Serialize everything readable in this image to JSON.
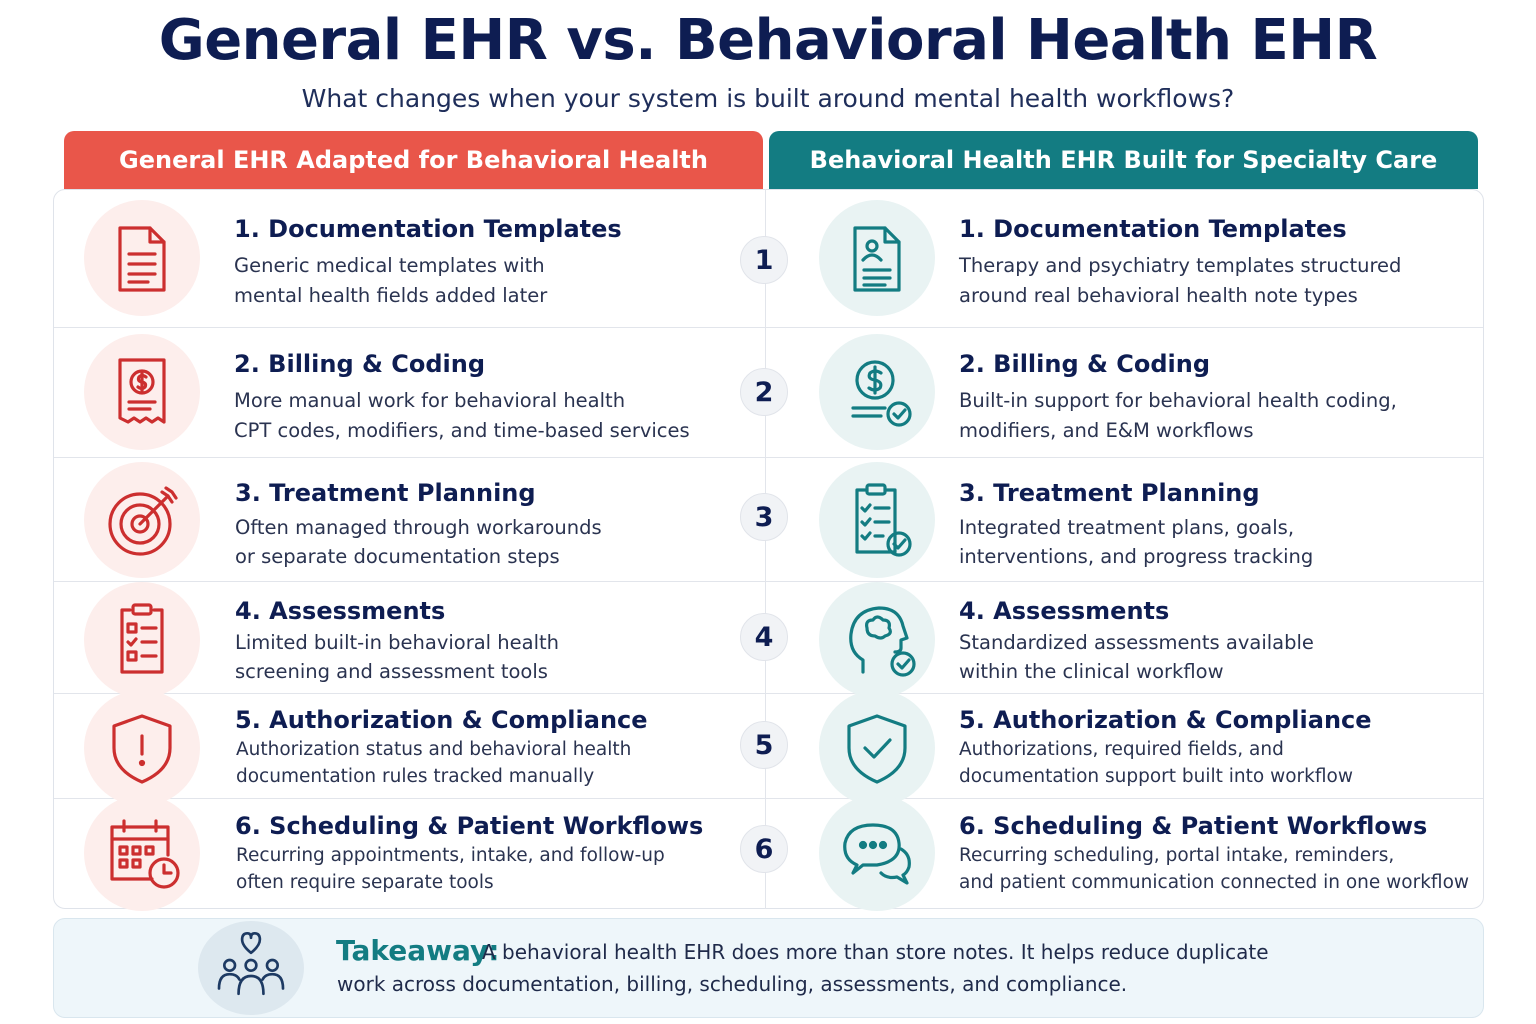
{
  "title": "General EHR vs. Behavioral Health EHR",
  "subtitle": "What changes when your system is built around mental health workflows?",
  "columns": {
    "left": "General EHR Adapted for Behavioral Health",
    "right": "Behavioral Health EHR Built for Specialty Care"
  },
  "colors": {
    "left_accent": "#e9564a",
    "right_accent": "#137c82",
    "icon_red": "#cc2f2f",
    "icon_teal": "#137c82"
  },
  "rows": [
    {
      "number": "1",
      "left": {
        "icon": "document-icon",
        "title": "1. Documentation Templates",
        "desc1": "Generic medical templates with",
        "desc2": "mental health fields added later"
      },
      "right": {
        "icon": "patient-document-icon",
        "title": "1. Documentation Templates",
        "desc1": "Therapy and psychiatry templates structured",
        "desc2": "around real behavioral health note types"
      }
    },
    {
      "number": "2",
      "left": {
        "icon": "invoice-dollar-icon",
        "title": "2. Billing & Coding",
        "desc1": "More manual work for behavioral health",
        "desc2": "CPT codes, modifiers, and time-based services"
      },
      "right": {
        "icon": "dollar-check-icon",
        "title": "2. Billing & Coding",
        "desc1": "Built-in support for behavioral health coding,",
        "desc2": "modifiers, and E&M workflows"
      }
    },
    {
      "number": "3",
      "left": {
        "icon": "target-icon",
        "title": "3. Treatment Planning",
        "desc1": "Often managed through workarounds",
        "desc2": "or separate documentation steps"
      },
      "right": {
        "icon": "clipboard-checklist-icon",
        "title": "3. Treatment Planning",
        "desc1": "Integrated treatment plans, goals,",
        "desc2": "interventions, and progress tracking"
      }
    },
    {
      "number": "4",
      "left": {
        "icon": "clipboard-icon",
        "title": "4. Assessments",
        "desc1": "Limited built-in behavioral health",
        "desc2": "screening and assessment tools"
      },
      "right": {
        "icon": "brain-check-icon",
        "title": "4. Assessments",
        "desc1": "Standardized assessments available",
        "desc2": "within the clinical workflow"
      }
    },
    {
      "number": "5",
      "left": {
        "icon": "shield-alert-icon",
        "title": "5. Authorization & Compliance",
        "desc1": "Authorization status and behavioral health",
        "desc2": "documentation rules tracked manually"
      },
      "right": {
        "icon": "shield-check-icon",
        "title": "5. Authorization & Compliance",
        "desc1": "Authorizations, required fields, and",
        "desc2": "documentation support built into workflow"
      }
    },
    {
      "number": "6",
      "left": {
        "icon": "calendar-clock-icon",
        "title": "6. Scheduling & Patient Workflows",
        "desc1": "Recurring appointments, intake, and follow-up",
        "desc2": "often require separate tools"
      },
      "right": {
        "icon": "chat-bubbles-icon",
        "title": "6. Scheduling & Patient Workflows",
        "desc1": "Recurring scheduling, portal intake, reminders,",
        "desc2": "and patient communication connected in one workflow"
      }
    }
  ],
  "takeaway": {
    "icon": "people-heart-icon",
    "label": "Takeaway:",
    "line1": "A behavioral health EHR does more than store notes. It helps reduce duplicate",
    "line2": "work across documentation, billing, scheduling, assessments, and compliance."
  }
}
